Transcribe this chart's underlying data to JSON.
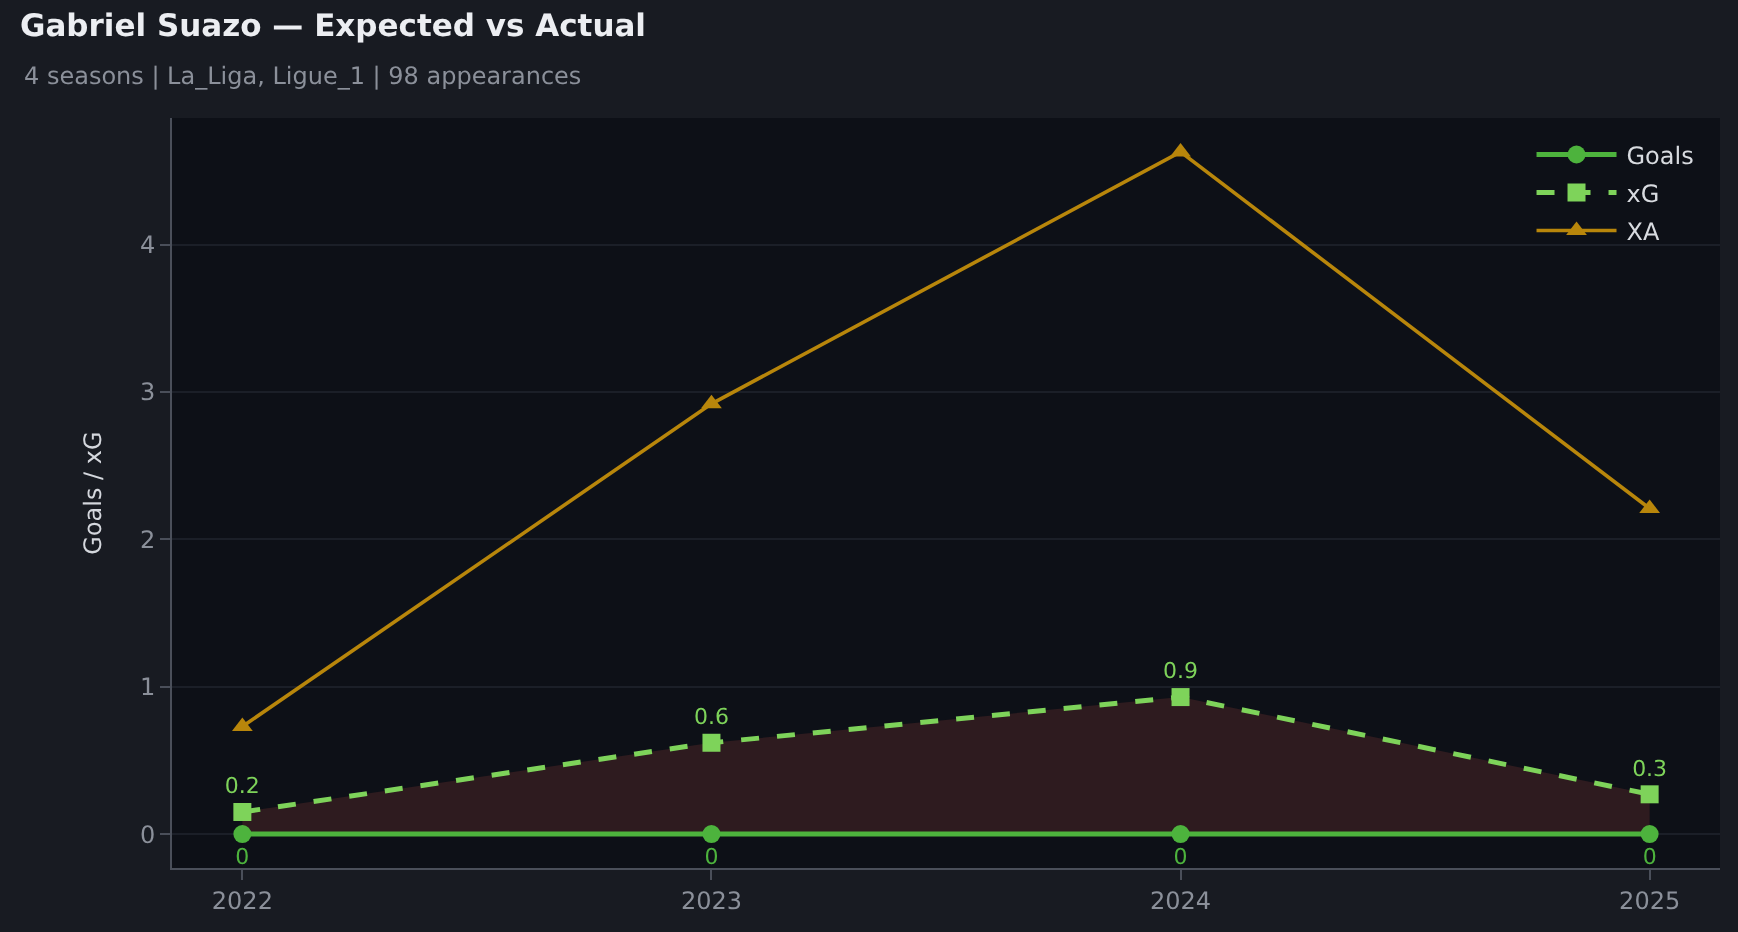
{
  "chart_data": {
    "type": "line",
    "title": "Gabriel Suazo — Expected vs Actual",
    "subtitle": "4 seasons | La_Liga, Ligue_1 | 98 appearances",
    "ylabel": "Goals / xG",
    "x": [
      2022,
      2023,
      2024,
      2025
    ],
    "xlim": [
      2021.85,
      2025.15
    ],
    "xticks": [
      2022,
      2023,
      2024,
      2025
    ],
    "ylim": [
      -0.23,
      4.86
    ],
    "yticks": [
      0,
      1,
      2,
      3,
      4
    ],
    "grid": "y",
    "legend": "top right",
    "series": [
      {
        "name": "Goals",
        "color": "#4db33d",
        "values": [
          0,
          0,
          0,
          0
        ],
        "marker": "circle",
        "line_style": "solid",
        "value_labels": [
          "0",
          "0",
          "0",
          "0"
        ]
      },
      {
        "name": "xG",
        "color": "#7ed35a",
        "values": [
          0.15,
          0.62,
          0.93,
          0.27
        ],
        "marker": "square",
        "line_style": "dashed",
        "value_labels": [
          "0.2",
          "0.6",
          "0.9",
          "0.3"
        ],
        "lower": [
          0,
          0,
          0,
          0
        ],
        "upper": [
          0.15,
          0.62,
          0.93,
          0.27
        ]
      },
      {
        "name": "XA",
        "color": "#b8860b",
        "values": [
          0.73,
          2.92,
          4.63,
          2.21
        ],
        "marker": "triangle",
        "line_style": "solid"
      }
    ]
  }
}
